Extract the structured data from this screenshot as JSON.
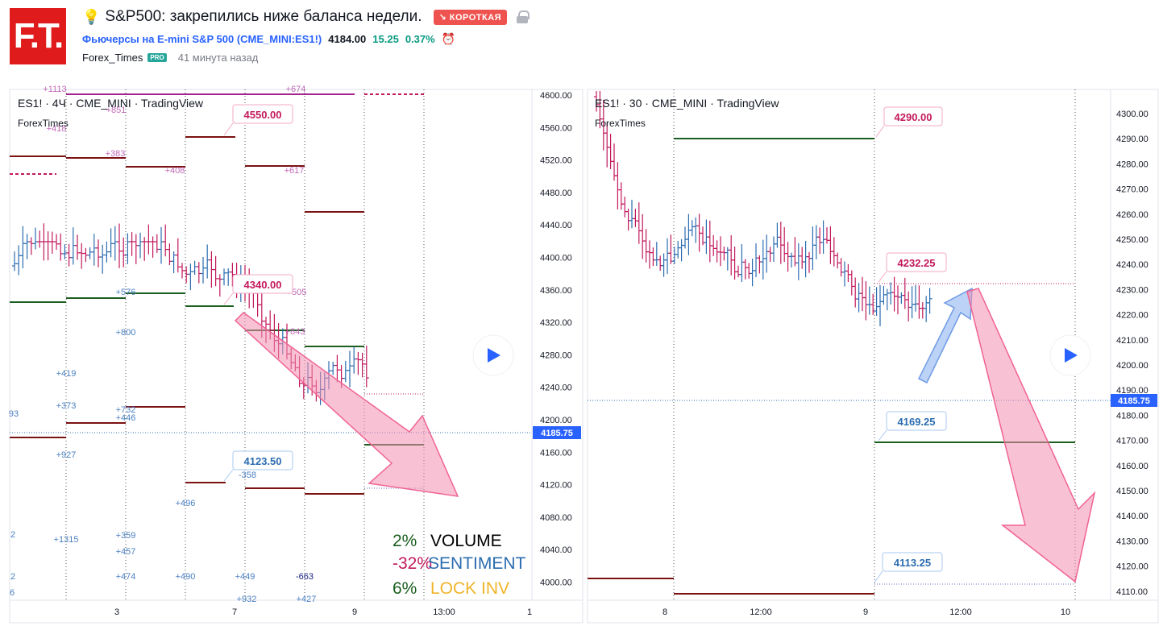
{
  "header": {
    "logo": "F.T.",
    "title": "S&P500: закрепились ниже баланса недели.",
    "badge": "↘ КОРОТКАЯ",
    "symbol_name": "Фьючерсы на E-mini S&P 500",
    "symbol_code": "(CME_MINI:ES1!)",
    "price": "4184.00",
    "change": "15.25",
    "change_pct": "0.37%",
    "author": "Forex_Times",
    "pro_badge": "PRO",
    "time_ago": "41 минута назад"
  },
  "colors": {
    "bull": "#2b6cb0",
    "bear": "#c2185b",
    "support": "#1b5e20",
    "resistance": "#7b1111",
    "accent": "#e01b1b"
  },
  "left_chart": {
    "title": "ES1! · 4Ч · CME_MINI · TradingView",
    "subtitle": "ForexTimes",
    "price_ticks": [
      "4600.00",
      "4560.00",
      "4520.00",
      "4480.00",
      "4440.00",
      "4400.00",
      "4360.00",
      "4320.00",
      "4280.00",
      "4240.00",
      "4200.00",
      "4160.00",
      "4120.00",
      "4080.00",
      "4040.00",
      "4000.00"
    ],
    "last_price": "4185.75",
    "time_ticks": [
      "3",
      "7",
      "9",
      "13:00",
      "1"
    ],
    "callouts": [
      "4550.00",
      "4340.00",
      "4123.50"
    ],
    "pink_labels": [
      "+1113",
      "+674",
      "+851",
      "+418",
      "+383",
      "+408",
      "+617",
      "+505",
      "+843"
    ],
    "blue_labels": [
      "+576",
      "+800",
      "+419",
      "+373",
      "+732",
      "+446",
      "+927",
      "-358",
      "+496",
      "+1315",
      "+359",
      "+457",
      "+474",
      "+490",
      "+449",
      "-663",
      "93",
      "2",
      "2",
      "6",
      "+932",
      "+427"
    ],
    "legend": [
      {
        "value": "2%",
        "label": "VOLUME"
      },
      {
        "value": "-32%",
        "label": "SENTIMENT"
      },
      {
        "value": "6%",
        "label": "LOCK INV"
      }
    ]
  },
  "right_chart": {
    "title": "ES1! · 30 · CME_MINI · TradingView",
    "subtitle": "ForexTimes",
    "price_ticks": [
      "4300.00",
      "4290.00",
      "4280.00",
      "4270.00",
      "4260.00",
      "4250.00",
      "4240.00",
      "4230.00",
      "4220.00",
      "4210.00",
      "4200.00",
      "4190.00",
      "4180.00",
      "4170.00",
      "4160.00",
      "4150.00",
      "4140.00",
      "4130.00",
      "4120.00",
      "4110.00"
    ],
    "last_price": "4185.75",
    "time_ticks": [
      "8",
      "12:00",
      "9",
      "12:00",
      "10"
    ],
    "callouts": [
      "4290.00",
      "4232.25",
      "4169.25",
      "4113.25"
    ]
  },
  "icons": [
    "lightbulb-icon",
    "lock-icon",
    "clock-alert-icon",
    "play-icon"
  ]
}
